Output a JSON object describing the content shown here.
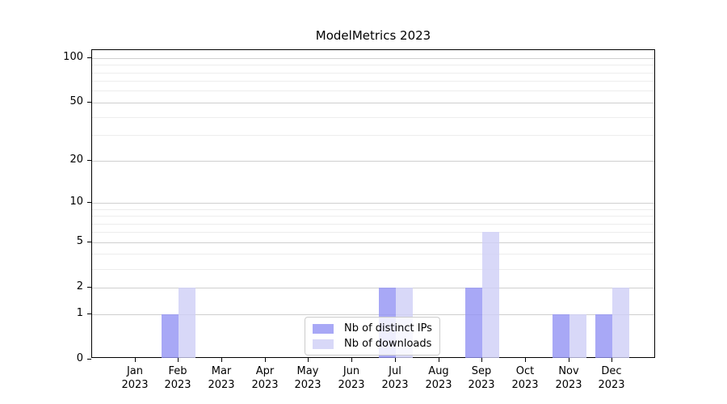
{
  "chart_data": {
    "type": "bar",
    "title": "ModelMetrics 2023",
    "categories": [
      "Jan 2023",
      "Feb 2023",
      "Mar 2023",
      "Apr 2023",
      "May 2023",
      "Jun 2023",
      "Jul 2023",
      "Aug 2023",
      "Sep 2023",
      "Oct 2023",
      "Nov 2023",
      "Dec 2023"
    ],
    "series": [
      {
        "name": "Nb of distinct IPs",
        "color": "#a8a8f6",
        "fill_rgba": "rgba(146,146,244,0.8)",
        "values": [
          0,
          1,
          0,
          0,
          0,
          0,
          2,
          0,
          2,
          0,
          1,
          1
        ]
      },
      {
        "name": "Nb of downloads",
        "color": "#d8d8f8",
        "fill_rgba": "rgba(206,206,246,0.8)",
        "values": [
          0,
          2,
          0,
          0,
          0,
          0,
          2,
          0,
          6,
          0,
          1,
          2
        ]
      }
    ],
    "xlabel": "",
    "ylabel": "",
    "y_axis": {
      "scale": "log10(1+x)",
      "major_ticks": [
        100,
        50,
        20,
        10,
        5,
        2,
        1,
        0
      ],
      "minor_gridlines": [
        3,
        4,
        6,
        7,
        8,
        9,
        30,
        40,
        60,
        70,
        80,
        90
      ],
      "ylim": [
        0,
        112
      ]
    },
    "grid": {
      "major_color": "#cfcfcf",
      "minor_color": "#ededed"
    },
    "legend": {
      "position": "lower-center-inside",
      "entries": [
        "Nb of distinct IPs",
        "Nb of downloads"
      ]
    }
  }
}
